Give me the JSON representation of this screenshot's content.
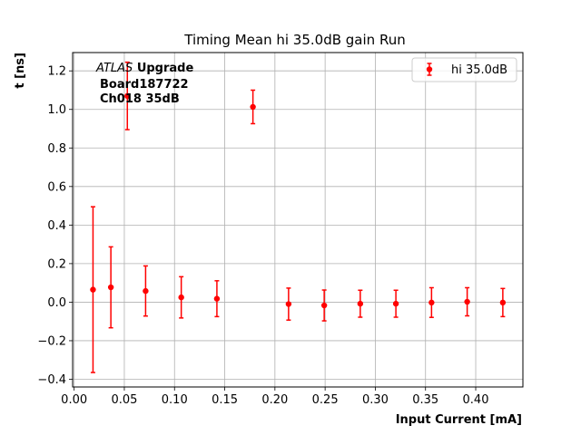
{
  "chart_data": {
    "type": "scatter",
    "title": "Timing Mean hi 35.0dB gain Run",
    "xlabel": "Input Current [mA]",
    "ylabel": "t [ns]",
    "xlim": [
      -0.0015,
      0.447
    ],
    "ylim": [
      -0.44,
      1.295
    ],
    "x_ticks": [
      0.0,
      0.05,
      0.1,
      0.15,
      0.2,
      0.25,
      0.3,
      0.35,
      0.4
    ],
    "x_tick_labels": [
      "0.00",
      "0.05",
      "0.10",
      "0.15",
      "0.20",
      "0.25",
      "0.30",
      "0.35",
      "0.40"
    ],
    "y_ticks": [
      -0.4,
      -0.2,
      0.0,
      0.2,
      0.4,
      0.6,
      0.8,
      1.0,
      1.2
    ],
    "y_tick_labels": [
      "−0.4",
      "−0.2",
      "0.0",
      "0.2",
      "0.4",
      "0.6",
      "0.8",
      "1.0",
      "1.2"
    ],
    "grid": true,
    "legend_position": "top-right",
    "color": "#ff0000",
    "annotation": {
      "italic": "ATLAS",
      "bold": "Upgrade",
      "line2": "Board187722",
      "line3": "Ch018 35dB"
    },
    "series": [
      {
        "name": "hi 35.0dB",
        "points": [
          {
            "x": 0.0188,
            "y": 0.065,
            "err": 0.43
          },
          {
            "x": 0.0366,
            "y": 0.077,
            "err": 0.21
          },
          {
            "x": 0.053,
            "y": 1.07,
            "err": 0.175
          },
          {
            "x": 0.0712,
            "y": 0.058,
            "err": 0.13
          },
          {
            "x": 0.1067,
            "y": 0.025,
            "err": 0.107
          },
          {
            "x": 0.1422,
            "y": 0.018,
            "err": 0.093
          },
          {
            "x": 0.1781,
            "y": 1.013,
            "err": 0.087
          },
          {
            "x": 0.2136,
            "y": -0.01,
            "err": 0.083
          },
          {
            "x": 0.2491,
            "y": -0.017,
            "err": 0.08
          },
          {
            "x": 0.285,
            "y": -0.008,
            "err": 0.07
          },
          {
            "x": 0.3205,
            "y": -0.008,
            "err": 0.07
          },
          {
            "x": 0.356,
            "y": -0.002,
            "err": 0.077
          },
          {
            "x": 0.3915,
            "y": 0.002,
            "err": 0.073
          },
          {
            "x": 0.427,
            "y": -0.002,
            "err": 0.073
          }
        ]
      }
    ]
  }
}
